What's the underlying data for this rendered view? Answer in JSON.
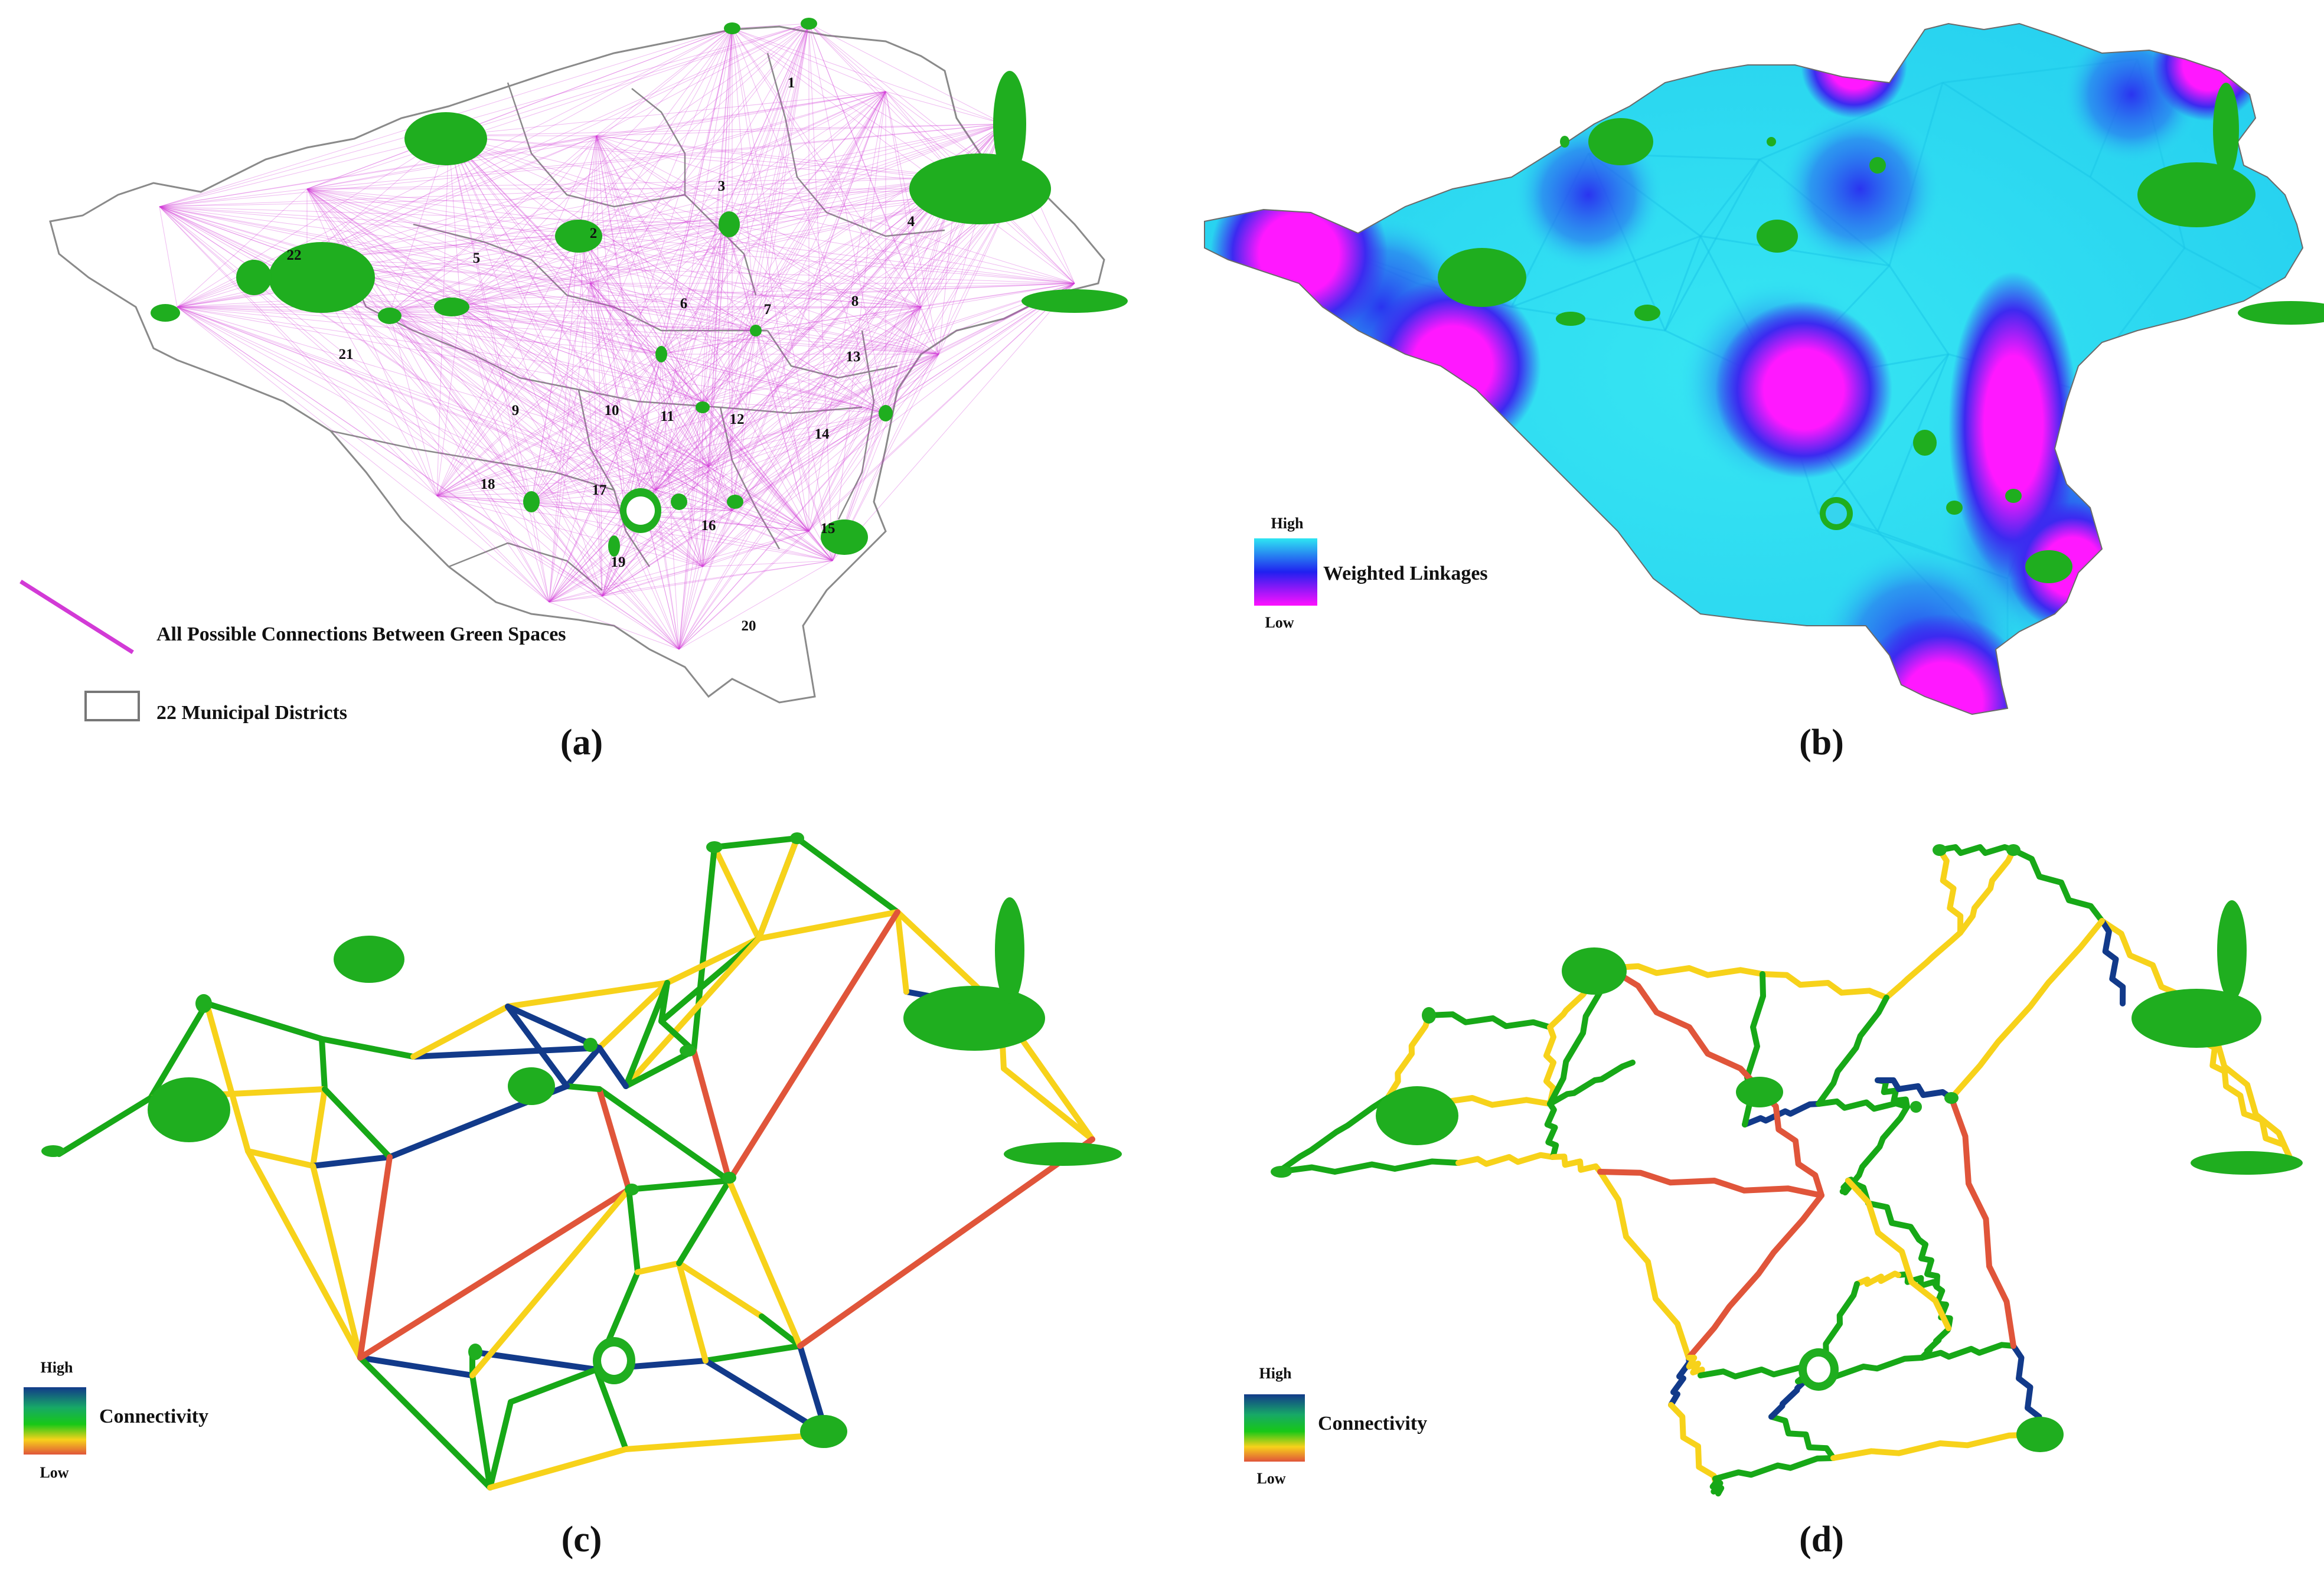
{
  "figure": {
    "panels": [
      {
        "id": "a",
        "label": "(a)"
      },
      {
        "id": "b",
        "label": "(b)"
      },
      {
        "id": "c",
        "label": "(c)"
      },
      {
        "id": "d",
        "label": "(d)"
      }
    ]
  },
  "panel_a": {
    "district_numbers": [
      "1",
      "2",
      "3",
      "4",
      "5",
      "6",
      "7",
      "8",
      "9",
      "10",
      "11",
      "12",
      "13",
      "14",
      "15",
      "16",
      "17",
      "18",
      "19",
      "20",
      "21",
      "22"
    ],
    "legend": {
      "connections": "All Possible Connections Between Green Spaces",
      "districts": "22 Municipal Districts"
    },
    "colors": {
      "connection": "#d23ad6",
      "district_border": "#8a8a8a",
      "green_space": "#1fae1f"
    }
  },
  "panel_b": {
    "legend": {
      "high": "High",
      "low": "Low",
      "title": "Weighted Linkages"
    },
    "colors": {
      "high": "#2ee6f2",
      "mid": "#2020f0",
      "low": "#ff10ff"
    }
  },
  "panel_c": {
    "legend": {
      "high": "High",
      "low": "Low",
      "title": "Connectivity"
    },
    "colors": {
      "high": "#123a8a",
      "mid": "#17a817",
      "mid_low": "#f7d21a",
      "low": "#e0553a"
    }
  },
  "panel_d": {
    "legend": {
      "high": "High",
      "low": "Low",
      "title": "Connectivity"
    }
  }
}
